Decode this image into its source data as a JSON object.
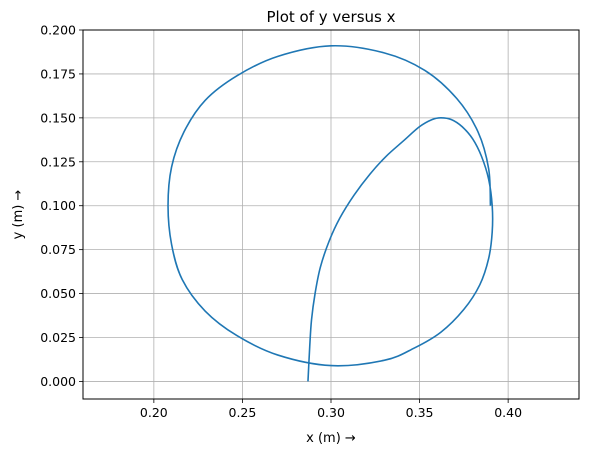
{
  "chart_data": {
    "type": "line",
    "title": "Plot of y versus x",
    "xlabel": "x (m)  →",
    "ylabel": "y (m)  →",
    "xlim": [
      0.16,
      0.44
    ],
    "ylim": [
      -0.01,
      0.2
    ],
    "xticks": [
      0.2,
      0.25,
      0.3,
      0.35,
      0.4
    ],
    "yticks": [
      0.0,
      0.025,
      0.05,
      0.075,
      0.1,
      0.125,
      0.15,
      0.175,
      0.2
    ],
    "xtick_labels": [
      "0.20",
      "0.25",
      "0.30",
      "0.35",
      "0.40"
    ],
    "ytick_labels": [
      "0.000",
      "0.025",
      "0.050",
      "0.075",
      "0.100",
      "0.125",
      "0.150",
      "0.175",
      "0.200"
    ],
    "grid": true,
    "series": [
      {
        "color": "#1f77b4",
        "x": [
          0.287,
          0.288,
          0.289,
          0.291,
          0.294,
          0.299,
          0.305,
          0.313,
          0.322,
          0.331,
          0.341,
          0.35,
          0.357,
          0.362,
          0.368,
          0.374,
          0.38,
          0.385,
          0.389,
          0.391,
          0.391,
          0.389,
          0.384,
          0.375,
          0.362,
          0.347,
          0.33,
          0.3,
          0.27,
          0.247,
          0.229,
          0.216,
          0.21,
          0.208,
          0.21,
          0.217,
          0.229,
          0.247,
          0.27,
          0.3,
          0.33,
          0.353,
          0.371,
          0.383,
          0.389,
          0.39
        ],
        "y": [
          0.0,
          0.02,
          0.035,
          0.05,
          0.065,
          0.08,
          0.093,
          0.106,
          0.118,
          0.128,
          0.137,
          0.145,
          0.149,
          0.15,
          0.149,
          0.145,
          0.138,
          0.128,
          0.115,
          0.1,
          0.085,
          0.07,
          0.055,
          0.041,
          0.028,
          0.019,
          0.012,
          0.009,
          0.015,
          0.026,
          0.04,
          0.058,
          0.078,
          0.1,
          0.122,
          0.142,
          0.16,
          0.174,
          0.185,
          0.191,
          0.187,
          0.177,
          0.161,
          0.142,
          0.121,
          0.1
        ]
      }
    ]
  }
}
